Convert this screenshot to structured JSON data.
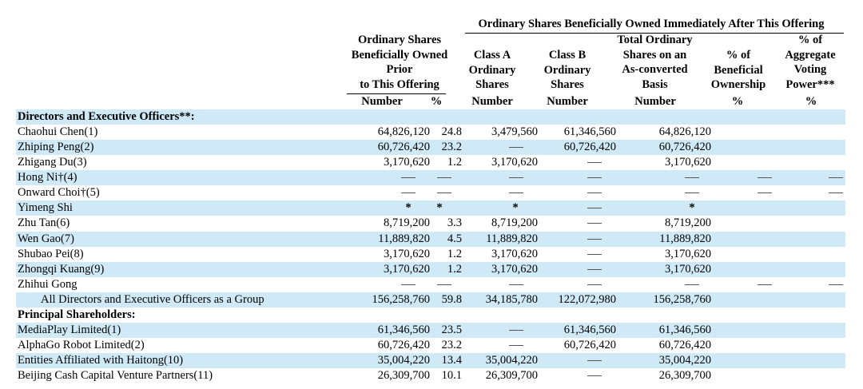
{
  "header": {
    "top_span": "Ordinary Shares Beneficially Owned Immediately After This Offering",
    "prior_group": [
      "Ordinary Shares",
      "Beneficially Owned",
      "Prior",
      "to This Offering"
    ],
    "prior_number": "Number",
    "prior_pct": "%",
    "class_a": [
      "Class A",
      "Ordinary",
      "Shares"
    ],
    "class_a_sub": "Number",
    "class_b": [
      "Class B",
      "Ordinary",
      "Shares"
    ],
    "class_b_sub": "Number",
    "total": [
      "Total Ordinary",
      "Shares on an",
      "As-converted",
      "Basis"
    ],
    "total_sub": "Number",
    "benef": [
      "% of",
      "Beneficial",
      "Ownership"
    ],
    "benef_sub": "%",
    "voting": [
      "% of",
      "Aggregate",
      "Voting",
      "Power***"
    ],
    "voting_sub": "%"
  },
  "rows": [
    {
      "name": "Directors and Executive Officers**:",
      "type": "section",
      "shade": true
    },
    {
      "name": "Chaohui Chen(1)",
      "shade": false,
      "pn": "64,826,120",
      "pp": "24.8",
      "ca": "3,479,560",
      "cb": "61,346,560",
      "tot": "64,826,120"
    },
    {
      "name": "Zhiping Peng(2)",
      "shade": true,
      "pn": "60,726,420",
      "pp": "23.2",
      "ca": "—",
      "cb": "60,726,420",
      "tot": "60,726,420"
    },
    {
      "name": "Zhigang Du(3)",
      "shade": false,
      "pn": "3,170,620",
      "pp": "1.2",
      "ca": "3,170,620",
      "cb": "—",
      "tot": "3,170,620"
    },
    {
      "name": "Hong Ni†(4)",
      "shade": true,
      "pn": "—",
      "pp": "—",
      "ca": "—",
      "cb": "—",
      "tot": "—",
      "bo": "—",
      "vp": "—"
    },
    {
      "name": "Onward Choi†(5)",
      "shade": false,
      "pn": "—",
      "pp": "—",
      "ca": "—",
      "cb": "—",
      "tot": "—",
      "bo": "—",
      "vp": "—"
    },
    {
      "name": "Yimeng Shi",
      "shade": true,
      "pn": "*",
      "pp": "*",
      "ca": "*",
      "cb": "—",
      "tot": "*"
    },
    {
      "name": "Zhu Tan(6)",
      "shade": false,
      "pn": "8,719,200",
      "pp": "3.3",
      "ca": "8,719,200",
      "cb": "—",
      "tot": "8,719,200"
    },
    {
      "name": "Wen Gao(7)",
      "shade": true,
      "pn": "11,889,820",
      "pp": "4.5",
      "ca": "11,889,820",
      "cb": "—",
      "tot": "11,889,820"
    },
    {
      "name": "Shubao Pei(8)",
      "shade": false,
      "pn": "3,170,620",
      "pp": "1.2",
      "ca": "3,170,620",
      "cb": "—",
      "tot": "3,170,620"
    },
    {
      "name": "Zhongqi Kuang(9)",
      "shade": true,
      "pn": "3,170,620",
      "pp": "1.2",
      "ca": "3,170,620",
      "cb": "—",
      "tot": "3,170,620"
    },
    {
      "name": "Zhihui Gong",
      "shade": false,
      "pn": "—",
      "pp": "—",
      "ca": "—",
      "cb": "—",
      "tot": "—",
      "bo": "—",
      "vp": "—"
    },
    {
      "name": "All Directors and Executive Officers as a Group",
      "type": "indent",
      "shade": true,
      "pn": "156,258,760",
      "pp": "59.8",
      "ca": "34,185,780",
      "cb": "122,072,980",
      "tot": "156,258,760"
    },
    {
      "name": "Principal Shareholders:",
      "type": "section",
      "shade": false
    },
    {
      "name": "MediaPlay Limited(1)",
      "shade": true,
      "pn": "61,346,560",
      "pp": "23.5",
      "ca": "—",
      "cb": "61,346,560",
      "tot": "61,346,560"
    },
    {
      "name": "AlphaGo Robot Limited(2)",
      "shade": false,
      "pn": "60,726,420",
      "pp": "23.2",
      "ca": "—",
      "cb": "60,726,420",
      "tot": "60,726,420"
    },
    {
      "name": "Entities Affiliated with Haitong(10)",
      "shade": true,
      "pn": "35,004,220",
      "pp": "13.4",
      "ca": "35,004,220",
      "cb": "—",
      "tot": "35,004,220"
    },
    {
      "name": "Beijing Cash Capital Venture Partners(11)",
      "shade": false,
      "pn": "26,309,700",
      "pp": "10.1",
      "ca": "26,309,700",
      "cb": "—",
      "tot": "26,309,700"
    }
  ]
}
